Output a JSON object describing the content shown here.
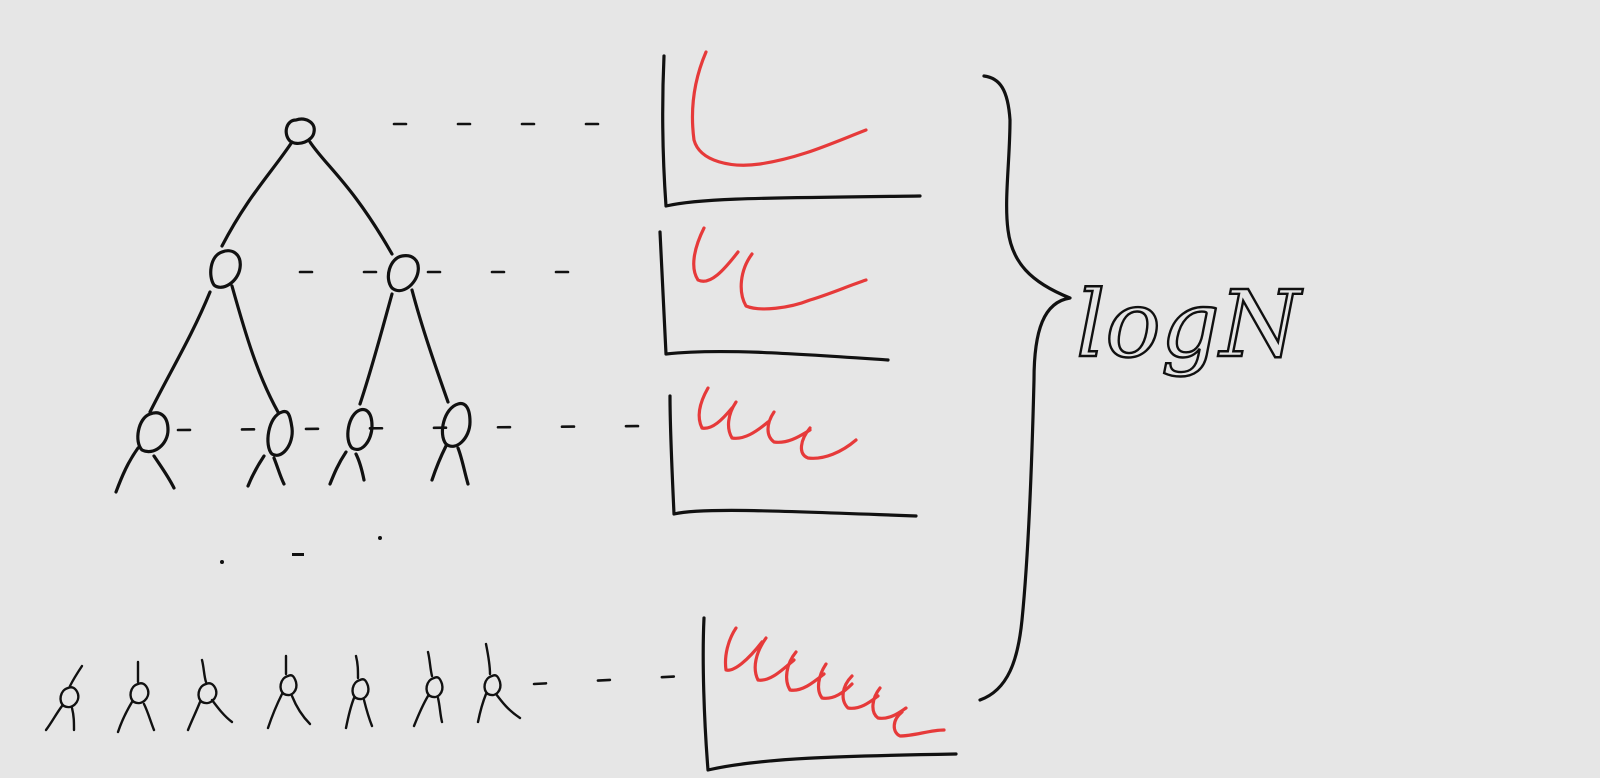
{
  "annotation": {
    "label": "logN"
  },
  "colors": {
    "background": "#e6e6e6",
    "ink": "#111111",
    "highlight": "#e63a3a"
  },
  "levels": [
    {
      "nodes": 1,
      "red_curves": 1
    },
    {
      "nodes": 2,
      "red_curves": 2
    },
    {
      "nodes": 4,
      "red_curves": 4
    },
    {
      "nodes": 7,
      "red_curves": 7
    }
  ]
}
